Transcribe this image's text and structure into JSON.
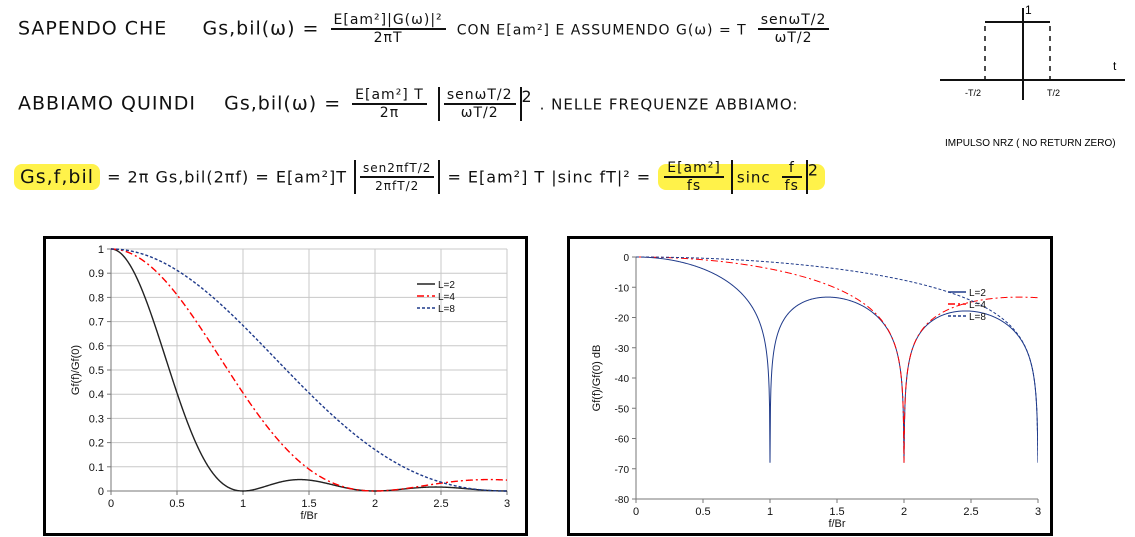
{
  "notes": {
    "line1": {
      "prefix": "SAPENDO CHE",
      "lhs": "Gs,bil(ω) =",
      "frac_num": "E[am²]|G(ω)|²",
      "frac_den": "2πT",
      "middle": "CON  E[am²]  E ASSUMENDO  G(ω) = T",
      "frac2_num": "senωT/2",
      "frac2_den": "ωT/2"
    },
    "line2": {
      "prefix": "ABBIAMO QUINDI",
      "lhs": "Gs,bil(ω) =",
      "frac_num": "E[am²] T",
      "frac_den": "2π",
      "abs_num": "senωT/2",
      "abs_den": "ωT/2",
      "power": "2",
      "suffix": ". NELLE FREQUENZE ABBIAMO:"
    },
    "line3": {
      "lhs": "Gs,f,bil",
      "eq1": "= 2π Gs,bil(2πf) = E[am²]T",
      "abs_num": "sen2πfT/2",
      "abs_den": "2πfT/2",
      "eq2": "= E[am²] T |sinc fT|² =",
      "hl_num": "E[am²]",
      "hl_den": "fs",
      "sinc_num": "f",
      "sinc_den": "fs",
      "sinc_pre": "sinc",
      "power": "2"
    },
    "pulse": {
      "amp": "1",
      "t_axis": "t",
      "left_tick": "-T/2",
      "right_tick": "T/2",
      "caption": "IMPULSO NRZ ( NO RETURN ZERO)"
    }
  },
  "chart_data": [
    {
      "type": "line",
      "ylabel": "Gf(f)/Gf(0)",
      "xlabel": "f/Br",
      "xlim": [
        0,
        3
      ],
      "ylim": [
        0,
        1
      ],
      "x_ticks": [
        "0",
        "0.5",
        "1",
        "1.5",
        "2",
        "2.5",
        "3"
      ],
      "y_ticks": [
        "0",
        "0.1",
        "0.2",
        "0.3",
        "0.4",
        "0.5",
        "0.6",
        "0.7",
        "0.8",
        "0.9",
        "1"
      ],
      "grid": true,
      "legend_position": "top-right",
      "series": [
        {
          "name": "L=2",
          "L": 2,
          "color": "#222222",
          "dash": "solid"
        },
        {
          "name": "L=4",
          "L": 4,
          "color": "#ff0000",
          "dash": "dashdot"
        },
        {
          "name": "L=8",
          "L": 8,
          "color": "#1f3a8a",
          "dash": "dashed"
        }
      ]
    },
    {
      "type": "line",
      "ylabel": "Gf(f)/Gf(0) dB",
      "xlabel": "f/Br",
      "xlim": [
        0,
        3
      ],
      "ylim": [
        -80,
        0
      ],
      "x_ticks": [
        "0",
        "0.5",
        "1",
        "1.5",
        "2",
        "2.5",
        "3"
      ],
      "y_ticks": [
        "-80",
        "-70",
        "-60",
        "-50",
        "-40",
        "-30",
        "-20",
        "-10",
        "0"
      ],
      "grid": false,
      "legend_position": "top-right",
      "series": [
        {
          "name": "L=2",
          "L": 2,
          "color": "#1f3a8a",
          "dash": "solid"
        },
        {
          "name": "L=4",
          "L": 4,
          "color": "#ff0000",
          "dash": "dashdot"
        },
        {
          "name": "L=8",
          "L": 8,
          "color": "#1f3a8a",
          "dash": "dashed"
        }
      ]
    }
  ]
}
